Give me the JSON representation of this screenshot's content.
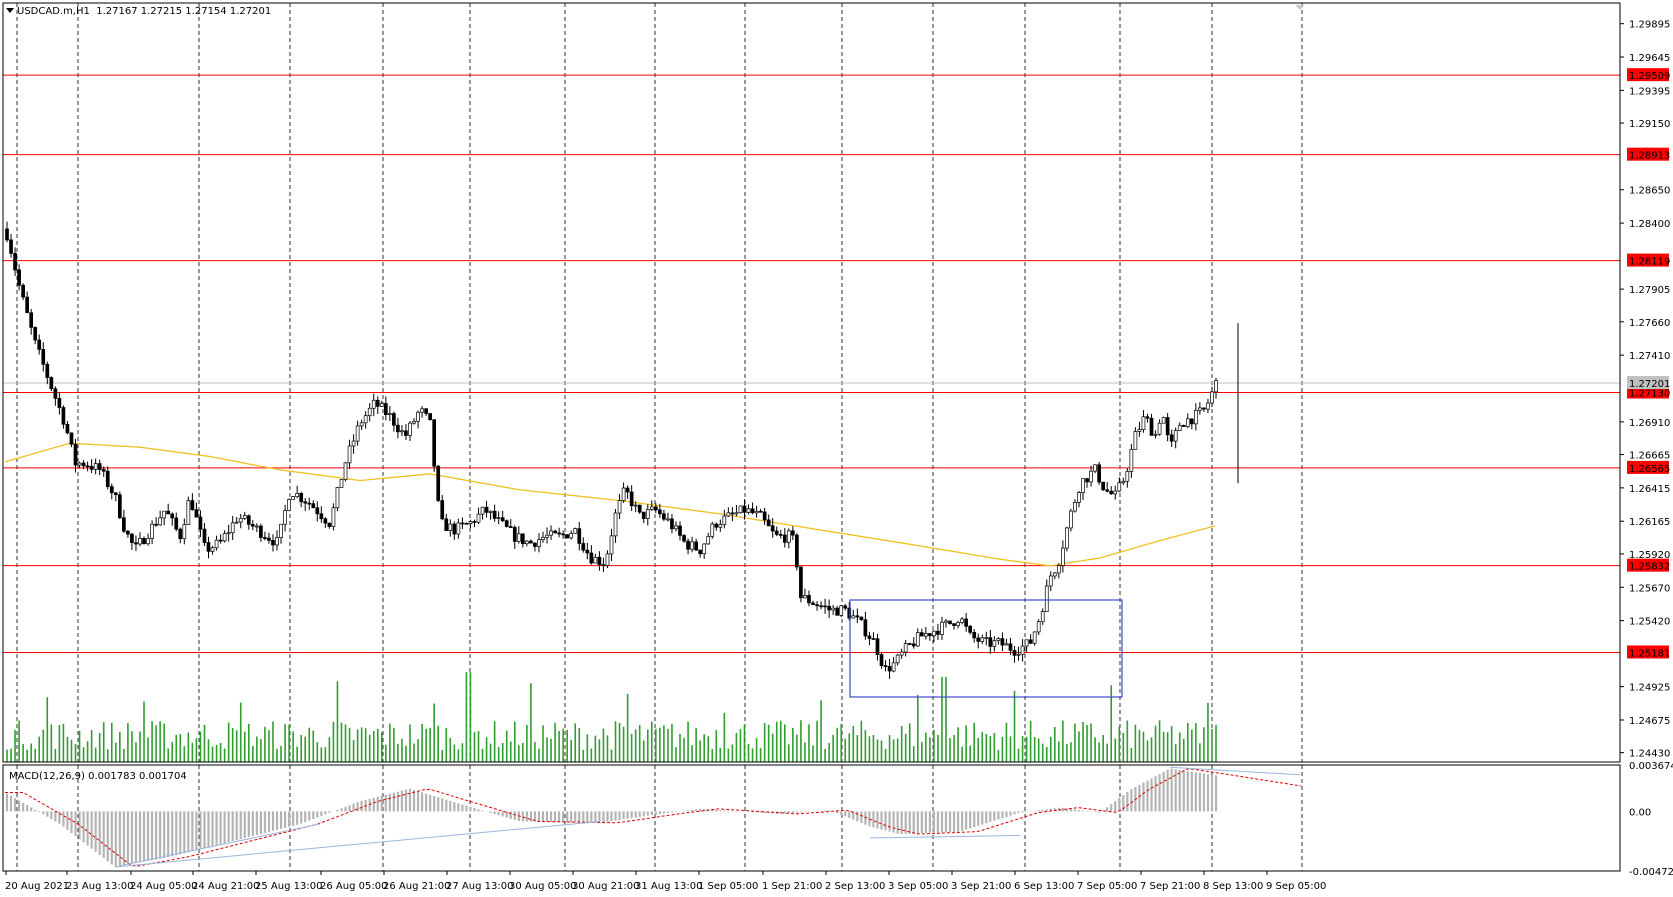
{
  "header": {
    "symbol": "USDCAD.m,H1",
    "ohlc": "1.27167 1.27215 1.27154 1.27201"
  },
  "macd_header": "MACD(12,26,9) 0.001783 0.001704",
  "colors": {
    "candle": "#000000",
    "level_line": "#ff0000",
    "level_label_bg": "#ff0000",
    "ma_line": "#f0c020",
    "volume": "#2e9e2e",
    "rectangle": "#3f48cc",
    "macd_hist": "#b4b4b4",
    "macd_signal": "#dd0000",
    "trendline": "#9cb6dc"
  },
  "price_axis": [
    {
      "v": 1.29895,
      "label": "1.29895"
    },
    {
      "v": 1.29645,
      "label": "1.29645"
    },
    {
      "v": 1.29395,
      "label": "1.29395"
    },
    {
      "v": 1.2915,
      "label": "1.29150"
    },
    {
      "v": 1.2865,
      "label": "1.28650"
    },
    {
      "v": 1.284,
      "label": "1.28400"
    },
    {
      "v": 1.27905,
      "label": "1.27905"
    },
    {
      "v": 1.2766,
      "label": "1.27660"
    },
    {
      "v": 1.2741,
      "label": "1.27410"
    },
    {
      "v": 1.2691,
      "label": "1.26910"
    },
    {
      "v": 1.26665,
      "label": "1.26665"
    },
    {
      "v": 1.26415,
      "label": "1.26415"
    },
    {
      "v": 1.26165,
      "label": "1.26165"
    },
    {
      "v": 1.2592,
      "label": "1.25920"
    },
    {
      "v": 1.2567,
      "label": "1.25670"
    },
    {
      "v": 1.2542,
      "label": "1.25420"
    },
    {
      "v": 1.24925,
      "label": "1.24925"
    },
    {
      "v": 1.24675,
      "label": "1.24675"
    },
    {
      "v": 1.2443,
      "label": "1.24430"
    }
  ],
  "levels": [
    {
      "v": 1.29509,
      "label": "1.29509"
    },
    {
      "v": 1.28913,
      "label": "1.28913"
    },
    {
      "v": 1.28119,
      "label": "1.28119"
    },
    {
      "v": 1.2713,
      "label": "1.27130"
    },
    {
      "v": 1.26565,
      "label": "1.26565"
    },
    {
      "v": 1.25832,
      "label": "1.25832"
    },
    {
      "v": 1.25181,
      "label": "1.25181"
    }
  ],
  "current_price": {
    "v": 1.27201,
    "label": "1.27201"
  },
  "macd_axis": [
    {
      "v": 0.003674,
      "label": "0.003674"
    },
    {
      "v": 0.0,
      "label": "0.00"
    },
    {
      "v": -0.00472,
      "label": "-0.00472"
    }
  ],
  "time_axis": [
    "20 Aug 2021",
    "23 Aug 13:00",
    "24 Aug 05:00",
    "24 Aug 21:00",
    "25 Aug 13:00",
    "26 Aug 05:00",
    "26 Aug 21:00",
    "27 Aug 13:00",
    "30 Aug 05:00",
    "30 Aug 21:00",
    "31 Aug 13:00",
    "1 Sep 05:00",
    "1 Sep 21:00",
    "2 Sep 13:00",
    "3 Sep 05:00",
    "3 Sep 21:00",
    "6 Sep 13:00",
    "7 Sep 05:00",
    "7 Sep 21:00",
    "8 Sep 13:00",
    "9 Sep 05:00"
  ],
  "chart_data": {
    "type": "candlestick",
    "symbol": "USDCAD.m",
    "timeframe": "H1",
    "ylim": [
      1.2436,
      1.3005
    ],
    "bar_count": 301,
    "close_path": [
      [
        0,
        1.2845
      ],
      [
        8,
        1.283
      ],
      [
        20,
        1.279
      ],
      [
        35,
        1.275
      ],
      [
        50,
        1.272
      ],
      [
        65,
        1.269
      ],
      [
        75,
        1.266
      ],
      [
        85,
        1.266
      ],
      [
        100,
        1.2655
      ],
      [
        115,
        1.2635
      ],
      [
        125,
        1.261
      ],
      [
        135,
        1.2595
      ],
      [
        150,
        1.261
      ],
      [
        165,
        1.2625
      ],
      [
        180,
        1.2605
      ],
      [
        190,
        1.2635
      ],
      [
        205,
        1.2595
      ],
      [
        220,
        1.26
      ],
      [
        238,
        1.262
      ],
      [
        258,
        1.261
      ],
      [
        278,
        1.26
      ],
      [
        290,
        1.264
      ],
      [
        310,
        1.263
      ],
      [
        330,
        1.2615
      ],
      [
        345,
        1.266
      ],
      [
        360,
        1.269
      ],
      [
        375,
        1.2705
      ],
      [
        390,
        1.2695
      ],
      [
        405,
        1.268
      ],
      [
        420,
        1.27
      ],
      [
        430,
        1.269
      ],
      [
        440,
        1.2615
      ],
      [
        455,
        1.261
      ],
      [
        470,
        1.2615
      ],
      [
        485,
        1.2625
      ],
      [
        500,
        1.2615
      ],
      [
        515,
        1.2605
      ],
      [
        530,
        1.26
      ],
      [
        545,
        1.2605
      ],
      [
        560,
        1.2605
      ],
      [
        575,
        1.261
      ],
      [
        590,
        1.259
      ],
      [
        605,
        1.2585
      ],
      [
        615,
        1.262
      ],
      [
        625,
        1.264
      ],
      [
        640,
        1.262
      ],
      [
        655,
        1.2625
      ],
      [
        670,
        1.2615
      ],
      [
        685,
        1.26
      ],
      [
        700,
        1.2595
      ],
      [
        715,
        1.2615
      ],
      [
        730,
        1.262
      ],
      [
        745,
        1.2625
      ],
      [
        760,
        1.262
      ],
      [
        775,
        1.2605
      ],
      [
        790,
        1.2605
      ],
      [
        795,
        1.26
      ],
      [
        800,
        1.256
      ],
      [
        815,
        1.2555
      ],
      [
        830,
        1.255
      ],
      [
        845,
        1.255
      ],
      [
        860,
        1.254
      ],
      [
        875,
        1.2525
      ],
      [
        885,
        1.2505
      ],
      [
        895,
        1.251
      ],
      [
        905,
        1.252
      ],
      [
        920,
        1.253
      ],
      [
        935,
        1.2535
      ],
      [
        950,
        1.254
      ],
      [
        960,
        1.2545
      ],
      [
        970,
        1.253
      ],
      [
        985,
        1.2525
      ],
      [
        1000,
        1.2525
      ],
      [
        1015,
        1.252
      ],
      [
        1030,
        1.2525
      ],
      [
        1040,
        1.2545
      ],
      [
        1050,
        1.2575
      ],
      [
        1058,
        1.2585
      ],
      [
        1070,
        1.262
      ],
      [
        1080,
        1.2645
      ],
      [
        1095,
        1.2655
      ],
      [
        1105,
        1.264
      ],
      [
        1115,
        1.2635
      ],
      [
        1125,
        1.265
      ],
      [
        1135,
        1.268
      ],
      [
        1145,
        1.2695
      ],
      [
        1155,
        1.268
      ],
      [
        1162,
        1.27
      ],
      [
        1170,
        1.267
      ],
      [
        1180,
        1.269
      ],
      [
        1195,
        1.2695
      ],
      [
        1205,
        1.27
      ],
      [
        1216,
        1.272
      ]
    ],
    "moving_average_path": [
      [
        5,
        1.2661
      ],
      [
        70,
        1.2675
      ],
      [
        140,
        1.2672
      ],
      [
        210,
        1.2665
      ],
      [
        280,
        1.2655
      ],
      [
        360,
        1.2647
      ],
      [
        430,
        1.2652
      ],
      [
        520,
        1.264
      ],
      [
        620,
        1.2632
      ],
      [
        720,
        1.2622
      ],
      [
        820,
        1.261
      ],
      [
        920,
        1.2598
      ],
      [
        1000,
        1.2588
      ],
      [
        1050,
        1.2583
      ],
      [
        1100,
        1.2589
      ],
      [
        1160,
        1.2602
      ],
      [
        1215,
        1.2613
      ]
    ],
    "rectangle": {
      "x_start": "2 Sep 13:00",
      "x_end": "7 Sep 05:00",
      "price_high": 1.2561,
      "price_low": 1.2491
    },
    "macd": {
      "params": "12,26,9",
      "main": 0.001783,
      "signal": 0.001704,
      "ylim": [
        -0.00472,
        0.003674
      ]
    }
  }
}
